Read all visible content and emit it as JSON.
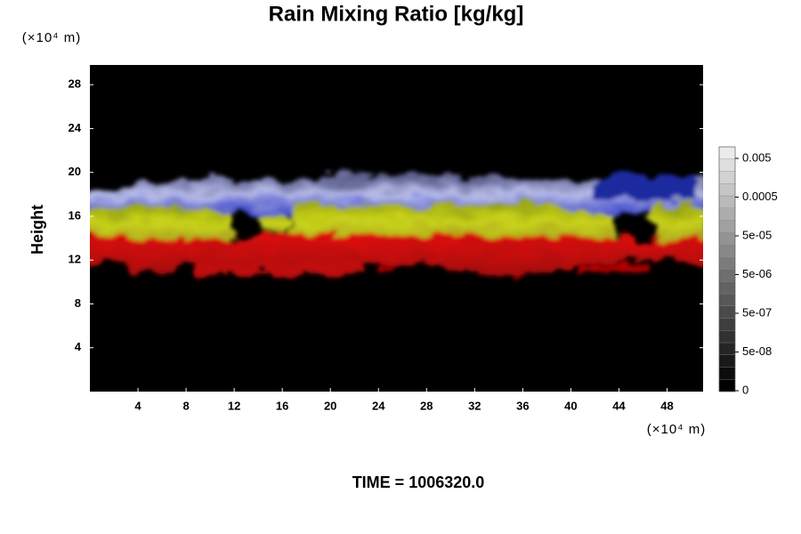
{
  "chart_data": {
    "type": "heatmap",
    "title": "Rain Mixing Ratio [kg/kg]",
    "y_unit_label": "(×10⁴ m)",
    "x_unit_label": "(×10⁴ m)",
    "ylabel": "Height",
    "xlim": [
      0,
      51
    ],
    "xticks": [
      4,
      8,
      12,
      16,
      20,
      24,
      28,
      32,
      36,
      40,
      44,
      48
    ],
    "ylim": [
      0,
      29.8
    ],
    "yticks": [
      4,
      8,
      12,
      16,
      20,
      24,
      28
    ],
    "colorbar_ticks": [
      0,
      {
        "value": 5e-08,
        "label": "5e-08"
      },
      {
        "value": 5e-07,
        "label": "5e-07"
      },
      {
        "value": 5e-06,
        "label": "5e-06"
      },
      {
        "value": 5e-05,
        "label": "5e-05"
      },
      0.0005,
      0.005
    ],
    "time_label": "TIME = 1006320.0"
  }
}
